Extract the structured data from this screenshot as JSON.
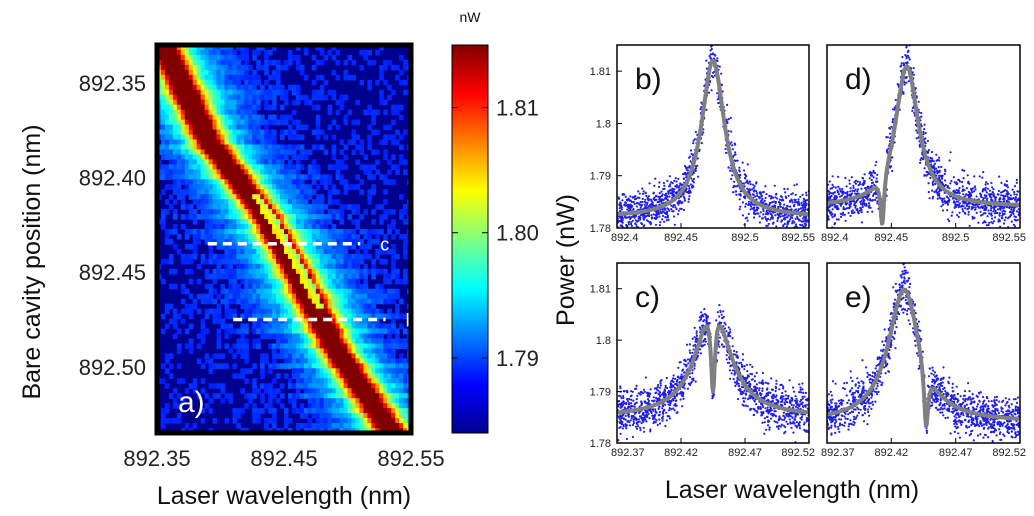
{
  "chart_data": [
    {
      "id": "a",
      "type": "heatmap",
      "panel_label": "a)",
      "xlabel": "Laser wavelength (nm)",
      "ylabel": "Bare cavity position (nm)",
      "xlim": [
        892.35,
        892.55
      ],
      "ylim": [
        892.33,
        892.535
      ],
      "x_ticks": [
        "892.35",
        "892.45",
        "892.55"
      ],
      "y_ticks": [
        "892.35",
        "892.40",
        "892.45",
        "892.50"
      ],
      "colorbar": {
        "unit": "nW",
        "range": [
          1.784,
          1.815
        ],
        "ticks": [
          "1.81",
          "1.80",
          "1.79"
        ]
      },
      "ridge": [
        {
          "cavity": 892.33,
          "wavelength": 892.355
        },
        {
          "cavity": 892.38,
          "wavelength": 892.39
        },
        {
          "cavity": 892.42,
          "wavelength": 892.435
        },
        {
          "cavity": 892.45,
          "wavelength": 892.46
        },
        {
          "cavity": 892.49,
          "wavelength": 892.49
        },
        {
          "cavity": 892.535,
          "wavelength": 892.535
        }
      ],
      "annotations": [
        {
          "text": "c",
          "cavity": 892.435,
          "x_from": 892.39,
          "x_to": 892.51
        },
        {
          "text": "b",
          "cavity": 892.475,
          "x_from": 892.41,
          "x_to": 892.53
        }
      ]
    },
    {
      "id": "b",
      "type": "scatter+line",
      "panel_label": "b)",
      "xlim": [
        892.4,
        892.55
      ],
      "ylim": [
        1.78,
        1.815
      ],
      "x_ticks": [
        "892.4",
        "892.45",
        "892.5",
        "892.55"
      ],
      "y_ticks": [
        "1.78",
        "1.79",
        "1.8",
        "1.81"
      ],
      "baseline": 1.782,
      "peaks": [
        {
          "center": 892.475,
          "height": 0.03,
          "width": 0.022
        }
      ],
      "dips": []
    },
    {
      "id": "d",
      "type": "scatter+line",
      "panel_label": "d)",
      "xlim": [
        892.4,
        892.55
      ],
      "ylim": [
        1.78,
        1.815
      ],
      "x_ticks": [
        "892.4",
        "892.45",
        "892.5",
        "892.55"
      ],
      "baseline": 1.784,
      "peaks": [
        {
          "center": 892.462,
          "height": 0.027,
          "width": 0.022
        }
      ],
      "dips": [
        {
          "center": 892.443,
          "depth": 0.01,
          "width": 0.0035
        }
      ]
    },
    {
      "id": "c",
      "type": "scatter+line",
      "panel_label": "c)",
      "xlim": [
        892.37,
        892.52
      ],
      "ylim": [
        1.78,
        1.815
      ],
      "x_ticks": [
        "892.37",
        "892.42",
        "892.47",
        "892.52"
      ],
      "y_ticks": [
        "1.78",
        "1.79",
        "1.8",
        "1.81"
      ],
      "baseline": 1.785,
      "peaks": [
        {
          "center": 892.445,
          "height": 0.022,
          "width": 0.032
        }
      ],
      "dips": [
        {
          "center": 892.445,
          "depth": 0.017,
          "width": 0.004
        }
      ]
    },
    {
      "id": "e",
      "type": "scatter+line",
      "panel_label": "e)",
      "xlim": [
        892.37,
        892.52
      ],
      "ylim": [
        1.78,
        1.815
      ],
      "x_ticks": [
        "892.37",
        "892.42",
        "892.47",
        "892.52"
      ],
      "baseline": 1.784,
      "peaks": [
        {
          "center": 892.43,
          "height": 0.026,
          "width": 0.03
        }
      ],
      "dips": [
        {
          "center": 892.447,
          "depth": 0.012,
          "width": 0.004
        }
      ]
    }
  ],
  "shared_labels": {
    "spectra_xlabel": "Laser wavelength (nm)",
    "spectra_ylabel": "Power (nW)"
  },
  "colors": {
    "scatter": "#1f1fe6",
    "fit": "#808080",
    "background": "#00008f"
  }
}
